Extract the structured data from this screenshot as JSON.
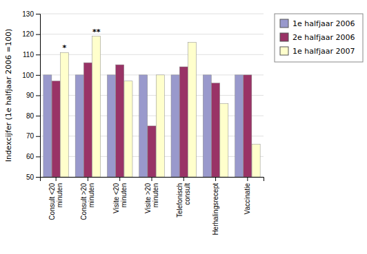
{
  "chart_data": {
    "type": "bar",
    "categories": [
      "Consult <20\nminuten",
      "Consult >20\nminuten",
      "Visite <20\nminuten",
      "Visite >20\nminuten",
      "Telefonisch\nconsult",
      "Herhalingsrecept",
      "Vaccinatie"
    ],
    "series": [
      {
        "name": "1e halfjaar 2006",
        "color": "#9999CC",
        "values": [
          100,
          100,
          100,
          100,
          100,
          100,
          100
        ]
      },
      {
        "name": "2e halfjaar 2006",
        "color": "#993366",
        "values": [
          97,
          106,
          105,
          75,
          104,
          96,
          100
        ]
      },
      {
        "name": "1e halfjaar 2007",
        "color": "#FFFFCC",
        "values": [
          111,
          119,
          97,
          100,
          116,
          86,
          66
        ]
      }
    ],
    "annotations": [
      {
        "text": "*",
        "category": "Consult <20\nminuten",
        "series": "1e halfjaar 2007"
      },
      {
        "text": "**",
        "category": "Consult >20\nminuten",
        "series": "1e halfjaar 2007"
      }
    ],
    "ylabel": "Indexcijfer (1e halfjaar 2006 =100)",
    "ylim": [
      50,
      130
    ],
    "yticks": [
      50,
      60,
      70,
      80,
      90,
      100,
      110,
      120,
      130
    ],
    "grid": true,
    "legend": "right"
  }
}
